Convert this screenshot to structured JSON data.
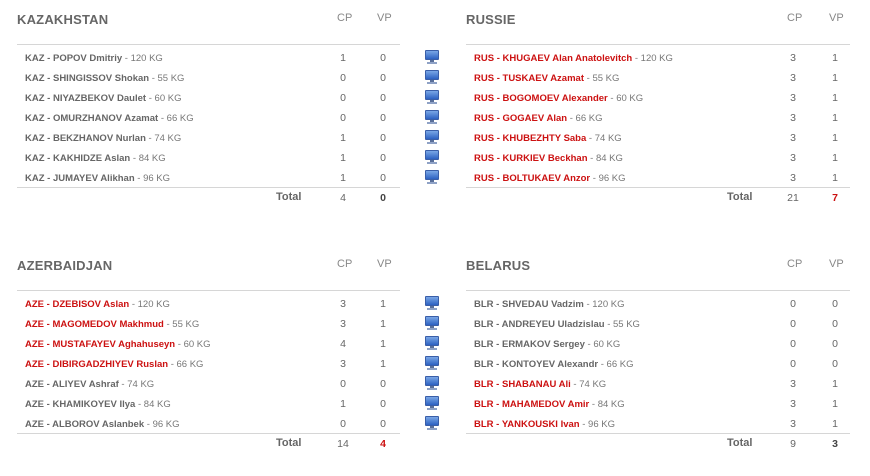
{
  "bouts": [
    {
      "left": {
        "team": "KAZAKHSTAN",
        "cp_label": "CP",
        "vp_label": "VP",
        "athletes": [
          {
            "code": "KAZ",
            "name": "POPOV Dmitriy",
            "weight": "120 KG",
            "cp": "1",
            "vp": "0",
            "winner": false
          },
          {
            "code": "KAZ",
            "name": "SHINGISSOV Shokan",
            "weight": "55 KG",
            "cp": "0",
            "vp": "0",
            "winner": false
          },
          {
            "code": "KAZ",
            "name": "NIYAZBEKOV Daulet",
            "weight": "60 KG",
            "cp": "0",
            "vp": "0",
            "winner": false
          },
          {
            "code": "KAZ",
            "name": "OMURZHANOV Azamat",
            "weight": "66 KG",
            "cp": "0",
            "vp": "0",
            "winner": false
          },
          {
            "code": "KAZ",
            "name": "BEKZHANOV Nurlan",
            "weight": "74 KG",
            "cp": "1",
            "vp": "0",
            "winner": false
          },
          {
            "code": "KAZ",
            "name": "KAKHIDZE Aslan",
            "weight": "84 KG",
            "cp": "1",
            "vp": "0",
            "winner": false
          },
          {
            "code": "KAZ",
            "name": "JUMAYEV Alikhan",
            "weight": "96 KG",
            "cp": "1",
            "vp": "0",
            "winner": false
          }
        ],
        "total_label": "Total",
        "total_cp": "4",
        "total_vp": "0",
        "winner": false
      },
      "right": {
        "team": "RUSSIE",
        "cp_label": "CP",
        "vp_label": "VP",
        "athletes": [
          {
            "code": "RUS",
            "name": "KHUGAEV Alan Anatolevitch",
            "weight": "120 KG",
            "cp": "3",
            "vp": "1",
            "winner": true
          },
          {
            "code": "RUS",
            "name": "TUSKAEV Azamat",
            "weight": "55 KG",
            "cp": "3",
            "vp": "1",
            "winner": true
          },
          {
            "code": "RUS",
            "name": "BOGOMOEV Alexander",
            "weight": "60 KG",
            "cp": "3",
            "vp": "1",
            "winner": true
          },
          {
            "code": "RUS",
            "name": "GOGAEV Alan",
            "weight": "66 KG",
            "cp": "3",
            "vp": "1",
            "winner": true
          },
          {
            "code": "RUS",
            "name": "KHUBEZHTY Saba",
            "weight": "74 KG",
            "cp": "3",
            "vp": "1",
            "winner": true
          },
          {
            "code": "RUS",
            "name": "KURKIEV Beckhan",
            "weight": "84 KG",
            "cp": "3",
            "vp": "1",
            "winner": true
          },
          {
            "code": "RUS",
            "name": "BOLTUKAEV Anzor",
            "weight": "96 KG",
            "cp": "3",
            "vp": "1",
            "winner": true
          }
        ],
        "total_label": "Total",
        "total_cp": "21",
        "total_vp": "7",
        "winner": true
      }
    },
    {
      "left": {
        "team": "AZERBAIDJAN",
        "cp_label": "CP",
        "vp_label": "VP",
        "athletes": [
          {
            "code": "AZE",
            "name": "DZEBISOV Aslan",
            "weight": "120 KG",
            "cp": "3",
            "vp": "1",
            "winner": true
          },
          {
            "code": "AZE",
            "name": "MAGOMEDOV Makhmud",
            "weight": "55 KG",
            "cp": "3",
            "vp": "1",
            "winner": true
          },
          {
            "code": "AZE",
            "name": "MUSTAFAYEV Aghahuseyn",
            "weight": "60 KG",
            "cp": "4",
            "vp": "1",
            "winner": true
          },
          {
            "code": "AZE",
            "name": "DIBIRGADZHIYEV Ruslan",
            "weight": "66 KG",
            "cp": "3",
            "vp": "1",
            "winner": true
          },
          {
            "code": "AZE",
            "name": "ALIYEV Ashraf",
            "weight": "74 KG",
            "cp": "0",
            "vp": "0",
            "winner": false
          },
          {
            "code": "AZE",
            "name": "KHAMIKOYEV Ilya",
            "weight": "84 KG",
            "cp": "1",
            "vp": "0",
            "winner": false
          },
          {
            "code": "AZE",
            "name": "ALBOROV Aslanbek",
            "weight": "96 KG",
            "cp": "0",
            "vp": "0",
            "winner": false
          }
        ],
        "total_label": "Total",
        "total_cp": "14",
        "total_vp": "4",
        "winner": true
      },
      "right": {
        "team": "BELARUS",
        "cp_label": "CP",
        "vp_label": "VP",
        "athletes": [
          {
            "code": "BLR",
            "name": "SHVEDAU Vadzim",
            "weight": "120 KG",
            "cp": "0",
            "vp": "0",
            "winner": false
          },
          {
            "code": "BLR",
            "name": "ANDREYEU Uladzislau",
            "weight": "55 KG",
            "cp": "0",
            "vp": "0",
            "winner": false
          },
          {
            "code": "BLR",
            "name": "ERMAKOV Sergey",
            "weight": "60 KG",
            "cp": "0",
            "vp": "0",
            "winner": false
          },
          {
            "code": "BLR",
            "name": "KONTOYEV Alexandr",
            "weight": "66 KG",
            "cp": "0",
            "vp": "0",
            "winner": false
          },
          {
            "code": "BLR",
            "name": "SHABANAU Ali",
            "weight": "74 KG",
            "cp": "3",
            "vp": "1",
            "winner": true
          },
          {
            "code": "BLR",
            "name": "MAHAMEDOV Amir",
            "weight": "84 KG",
            "cp": "3",
            "vp": "1",
            "winner": true
          },
          {
            "code": "BLR",
            "name": "YANKOUSKI Ivan",
            "weight": "96 KG",
            "cp": "3",
            "vp": "1",
            "winner": true
          }
        ],
        "total_label": "Total",
        "total_cp": "9",
        "total_vp": "3",
        "winner": false
      }
    }
  ],
  "icons": {
    "bout_details": "monitor-icon"
  },
  "colors": {
    "winner": "#cc1111",
    "text": "#666666",
    "separator": "#d6d6d6",
    "icon": "#3a6fd0"
  }
}
